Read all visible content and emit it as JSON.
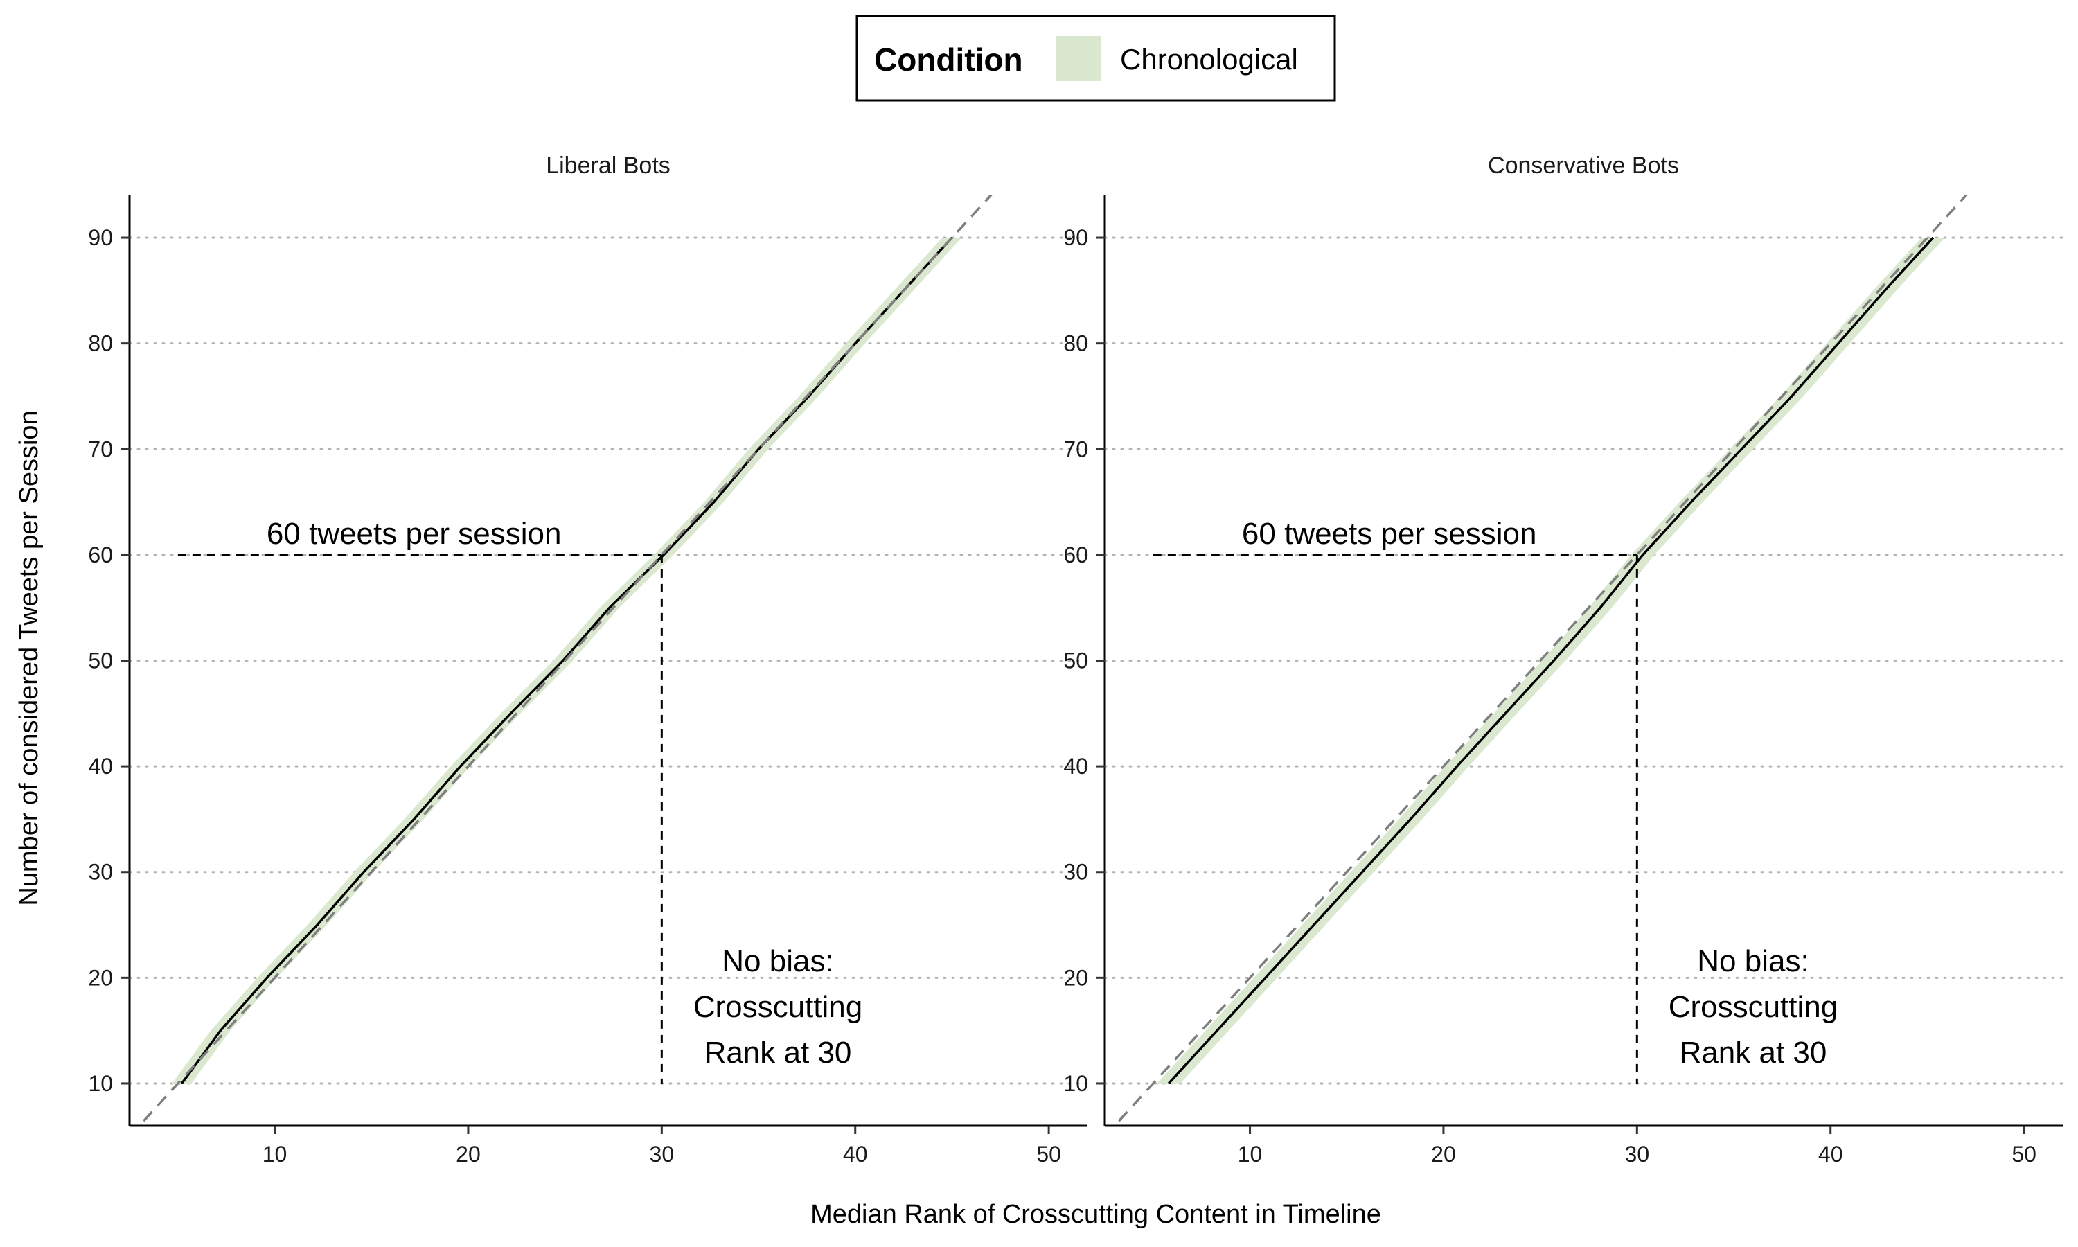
{
  "legend": {
    "title": "Condition",
    "entries": [
      {
        "label": "Chronological",
        "color": "#d9e8cf"
      }
    ],
    "placement": "top-center"
  },
  "axes": {
    "xlabel": "Median Rank of Crosscutting Content in Timeline",
    "ylabel": "Number of considered Tweets per Session"
  },
  "chart_data": {
    "type": "line",
    "xlim": [
      2.5,
      52
    ],
    "ylim": [
      6,
      94
    ],
    "x_ticks": [
      10,
      20,
      30,
      40,
      50
    ],
    "y_ticks": [
      10,
      20,
      30,
      40,
      50,
      60,
      70,
      80,
      90
    ],
    "grid": "horizontal dotted",
    "reference_line": "identity (y = 2x), dashed grey",
    "panels": [
      {
        "title": "Liberal Bots",
        "series": [
          {
            "name": "Chronological",
            "color": "#000000",
            "ribbon_color": "#d9e8cf",
            "points": [
              [
                5.2,
                10
              ],
              [
                7.2,
                15
              ],
              [
                9.6,
                20
              ],
              [
                12.2,
                25
              ],
              [
                14.6,
                30
              ],
              [
                17.2,
                35
              ],
              [
                19.6,
                40
              ],
              [
                22.2,
                45
              ],
              [
                24.9,
                50
              ],
              [
                27.3,
                55
              ],
              [
                30.1,
                60
              ],
              [
                32.7,
                65
              ],
              [
                35.0,
                70
              ],
              [
                37.6,
                75
              ],
              [
                40.0,
                80
              ],
              [
                42.5,
                85
              ],
              [
                45.0,
                90
              ]
            ],
            "ribbon_halfwidth": 0.5
          }
        ],
        "annotation_h": {
          "text": "60 tweets per session",
          "x_from": 5,
          "x_to": 30,
          "y": 60
        },
        "annotation_v": {
          "x": 30,
          "y_from": 10,
          "y_to": 60
        },
        "annotation_box": [
          "No bias:",
          "Crosscutting",
          "Rank at 30"
        ]
      },
      {
        "title": "Conservative Bots",
        "series": [
          {
            "name": "Chronological",
            "color": "#000000",
            "ribbon_color": "#d9e8cf",
            "points": [
              [
                5.8,
                10
              ],
              [
                8.3,
                15
              ],
              [
                10.8,
                20
              ],
              [
                13.3,
                25
              ],
              [
                15.8,
                30
              ],
              [
                18.3,
                35
              ],
              [
                20.7,
                40
              ],
              [
                23.2,
                45
              ],
              [
                25.7,
                50
              ],
              [
                28.1,
                55
              ],
              [
                30.3,
                60
              ],
              [
                32.8,
                65
              ],
              [
                35.4,
                70
              ],
              [
                38.0,
                75
              ],
              [
                40.4,
                80
              ],
              [
                42.8,
                85
              ],
              [
                45.3,
                90
              ]
            ],
            "ribbon_halfwidth": 0.6
          }
        ],
        "annotation_h": {
          "text": "60 tweets per session",
          "x_from": 5,
          "x_to": 30,
          "y": 60
        },
        "annotation_v": {
          "x": 30,
          "y_from": 10,
          "y_to": 60
        },
        "annotation_box": [
          "No bias:",
          "Crosscutting",
          "Rank at 30"
        ]
      }
    ]
  }
}
